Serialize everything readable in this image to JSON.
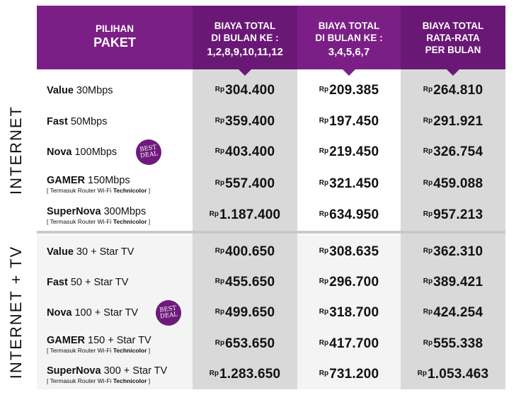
{
  "sections": [
    {
      "label": "INTERNET"
    },
    {
      "label": "INTERNET + TV"
    }
  ],
  "header": {
    "col0_line1": "PILIHAN",
    "col0_line2": "PAKET",
    "col1_line1": "BIAYA TOTAL",
    "col1_line2": "DI BULAN KE :",
    "col1_line3": "1,2,8,9,10,11,12",
    "col2_line1": "BIAYA TOTAL",
    "col2_line2": "DI BULAN KE :",
    "col2_line3": "3,4,5,6,7",
    "col3_line1": "BIAYA TOTAL",
    "col3_line2": "RATA-RATA",
    "col3_line3": "PER BULAN"
  },
  "currency": "Rp",
  "badge": {
    "line1": "BEST",
    "line2": "DEAL"
  },
  "router_note": {
    "prefix": "[ Termasuk Router Wi-Fi ",
    "brand": "Technicolor",
    "suffix": " ]"
  },
  "internet": [
    {
      "name": "Value",
      "speed": " 30Mbps",
      "c1": "304.400",
      "c2": "209.385",
      "c3": "264.810"
    },
    {
      "name": "Fast",
      "speed": " 50Mbps",
      "c1": "359.400",
      "c2": "197.450",
      "c3": "291.921"
    },
    {
      "name": "Nova",
      "speed": " 100Mbps",
      "c1": "403.400",
      "c2": "219.450",
      "c3": "326.754"
    },
    {
      "name": "GAMER",
      "speed": " 150Mbps",
      "c1": "557.400",
      "c2": "321.450",
      "c3": "459.088"
    },
    {
      "name": "SuperNova",
      "speed": " 300Mbps",
      "c1": "1.187.400",
      "c2": "634.950",
      "c3": "957.213"
    }
  ],
  "internet_tv": [
    {
      "name": "Value",
      "speed": " 30 + Star TV",
      "c1": "400.650",
      "c2": "308.635",
      "c3": "362.310"
    },
    {
      "name": "Fast",
      "speed": " 50 + Star TV",
      "c1": "455.650",
      "c2": "296.700",
      "c3": "389.421"
    },
    {
      "name": "Nova",
      "speed": " 100 + Star TV",
      "c1": "499.650",
      "c2": "318.700",
      "c3": "424.254"
    },
    {
      "name": "GAMER",
      "speed": " 150 + Star TV",
      "c1": "653.650",
      "c2": "417.700",
      "c3": "555.338"
    },
    {
      "name": "SuperNova",
      "speed": " 300 + Star TV",
      "c1": "1.283.650",
      "c2": "731.200",
      "c3": "1.053.463"
    }
  ]
}
